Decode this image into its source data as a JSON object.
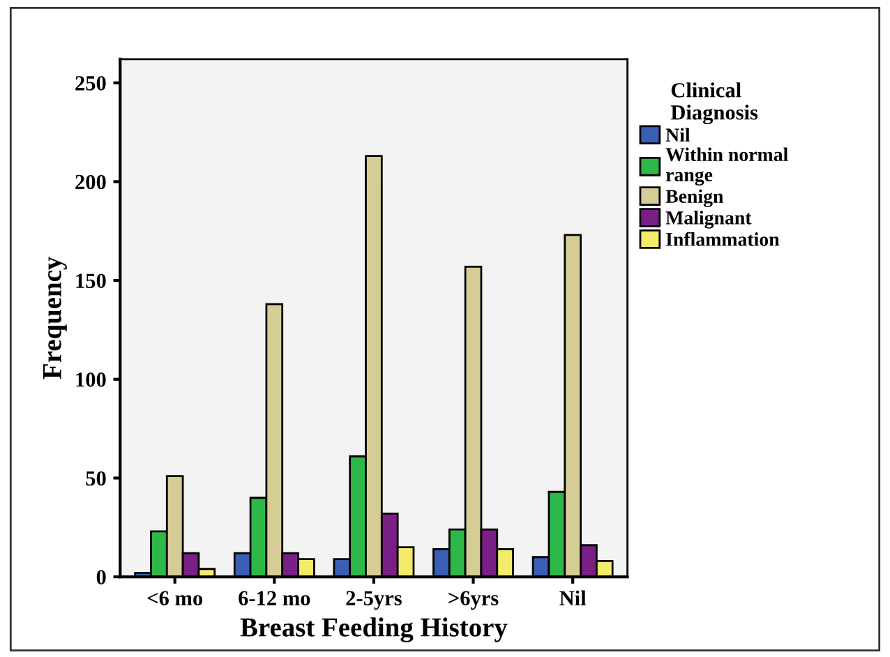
{
  "chart_data": {
    "type": "bar",
    "xlabel": "Breast Feeding History",
    "ylabel": "Frequency",
    "legend_title": "Clinical\nDiagnosis",
    "legend": "top right",
    "categories": [
      "<6 mo",
      "6-12 mo",
      "2-5yrs",
      ">6yrs",
      "Nil"
    ],
    "series": [
      {
        "name": "Nil",
        "color": "#3a5fb5",
        "values": [
          2,
          12,
          9,
          14,
          10
        ]
      },
      {
        "name": "Within normal\nrange",
        "color": "#2fb84a",
        "values": [
          23,
          40,
          61,
          24,
          43
        ]
      },
      {
        "name": "Benign",
        "color": "#d6cc96",
        "values": [
          51,
          138,
          213,
          157,
          173
        ]
      },
      {
        "name": "Malignant",
        "color": "#7a1f86",
        "values": [
          12,
          12,
          32,
          24,
          16
        ]
      },
      {
        "name": "Inflammation",
        "color": "#f2ec6a",
        "values": [
          4,
          9,
          15,
          14,
          8
        ]
      }
    ],
    "ylim": [
      0,
      262
    ],
    "yticks": [
      0,
      50,
      100,
      150,
      200,
      250
    ],
    "grid": false
  }
}
